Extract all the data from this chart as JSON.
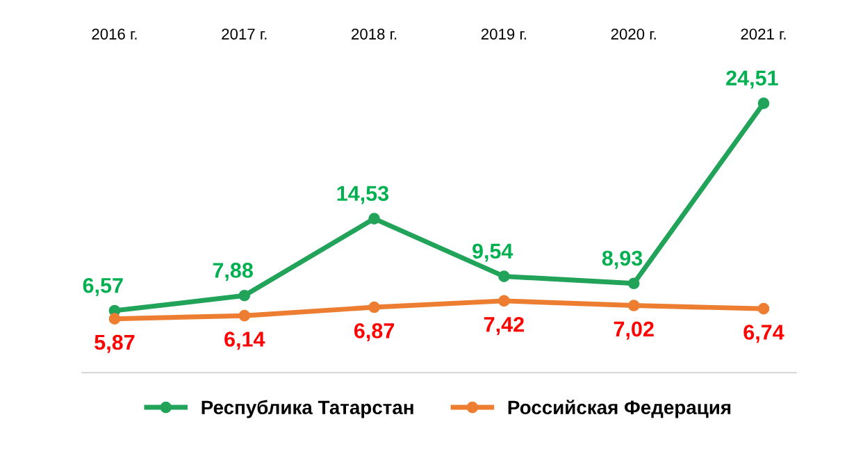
{
  "chart_data": {
    "type": "line",
    "categories": [
      "2016 г.",
      "2017 г.",
      "2018 г.",
      "2019 г.",
      "2020 г.",
      "2021 г."
    ],
    "series": [
      {
        "name": "Республика Татарстан",
        "color": "#21a35a",
        "values": [
          6.57,
          7.88,
          14.53,
          9.54,
          8.93,
          24.51
        ],
        "value_labels": [
          "6,57",
          "7,88",
          "14,53",
          "9,54",
          "8,93",
          "24,51"
        ]
      },
      {
        "name": "Российская Федерация",
        "color": "#ed7d31",
        "values": [
          5.87,
          6.14,
          6.87,
          7.42,
          7.02,
          6.74
        ],
        "value_labels": [
          "5,87",
          "6,14",
          "6,87",
          "7,42",
          "7,02",
          "6,74"
        ]
      }
    ],
    "legend": "bottom",
    "marker": "circle",
    "line_style": "solid",
    "grid": false,
    "tick_labels": "x"
  }
}
